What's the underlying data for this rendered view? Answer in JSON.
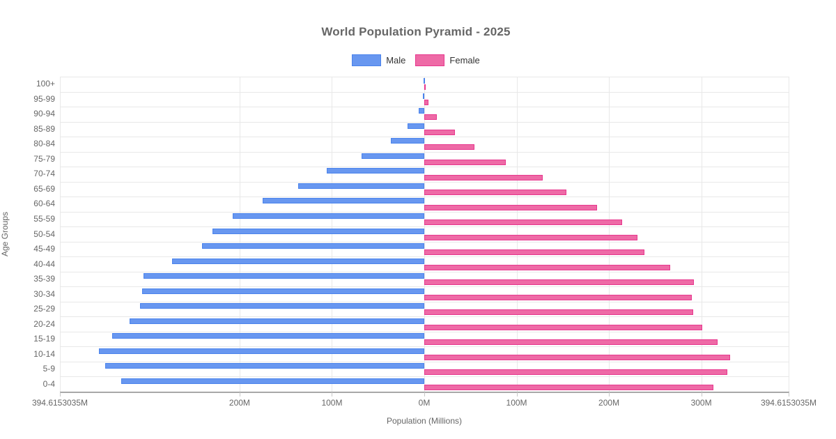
{
  "title": "World Population Pyramid - 2025",
  "legend": {
    "male_label": "Male",
    "female_label": "Female"
  },
  "colors": {
    "male_fill": "#6897f0",
    "male_border": "#4a83ec",
    "female_fill": "#ee6aa6",
    "female_border": "#e7368d",
    "grid": "#e8e8e8",
    "axis_line": "#a8a8a8",
    "tick_mark": "#c8c8c8",
    "axis_text": "#666666",
    "legend_text": "#333333",
    "title_text": "#666666"
  },
  "chart_data": {
    "type": "bar",
    "variant": "horizontal-population-pyramid",
    "title": "World Population Pyramid - 2025",
    "xlabel": "Population (Millions)",
    "ylabel": "Age Groups",
    "axis_max_abs_millions": 394.6153035,
    "grid": true,
    "legend_position": "top",
    "categories_top_to_bottom": [
      "100+",
      "95-99",
      "90-94",
      "85-89",
      "80-84",
      "75-79",
      "70-74",
      "65-69",
      "60-64",
      "55-59",
      "50-54",
      "45-49",
      "40-44",
      "35-39",
      "30-34",
      "25-29",
      "20-24",
      "15-19",
      "10-14",
      "5-9",
      "0-4"
    ],
    "series": [
      {
        "name": "Male",
        "side": "left",
        "values_millions_top_to_bottom": [
          0.1,
          1.6,
          5.7,
          18.3,
          36.4,
          68.1,
          105.8,
          136.7,
          175.2,
          207.6,
          229.5,
          240.8,
          273.2,
          304.1,
          305.4,
          308.1,
          319.2,
          338.1,
          352.4,
          345.6,
          328.3
        ]
      },
      {
        "name": "Female",
        "side": "right",
        "values_millions_top_to_bottom": [
          0.4,
          4.5,
          13.9,
          33.2,
          54.1,
          88.5,
          128.0,
          154.2,
          186.8,
          214.2,
          230.8,
          238.3,
          266.5,
          292.2,
          290.1,
          291.4,
          301.4,
          318.0,
          331.6,
          328.0,
          313.5
        ]
      }
    ],
    "x_ticks": [
      {
        "value": -394.6153035,
        "label": "394.6153035M"
      },
      {
        "value": -200,
        "label": "200M"
      },
      {
        "value": -100,
        "label": "100M"
      },
      {
        "value": 0,
        "label": "0M"
      },
      {
        "value": 100,
        "label": "100M"
      },
      {
        "value": 200,
        "label": "200M"
      },
      {
        "value": 300,
        "label": "300M"
      },
      {
        "value": 394.6153035,
        "label": "394.6153035M"
      }
    ]
  }
}
